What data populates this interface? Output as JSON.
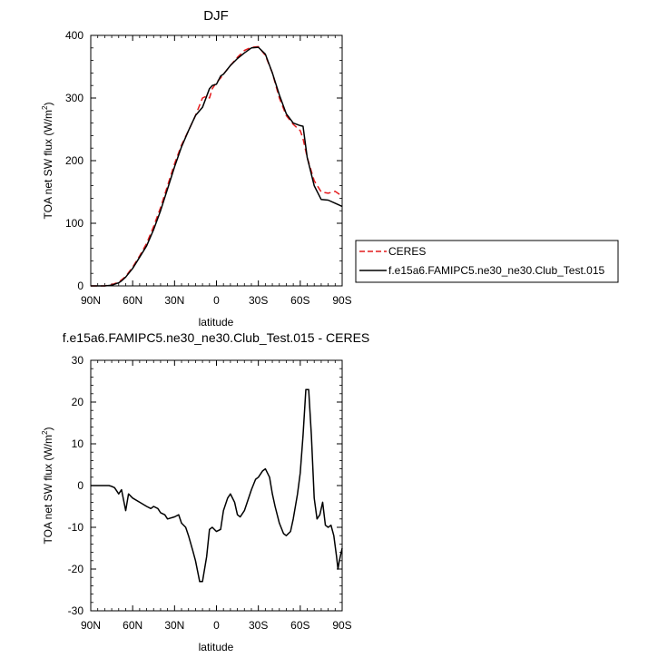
{
  "chart_data": [
    {
      "type": "line",
      "title": "DJF",
      "xlabel": "latitude",
      "ylabel_main": "TOA net SW flux (W/m",
      "ylabel_sup": "2",
      "ylabel_tail": ")",
      "xlim": [
        90,
        -90
      ],
      "ylim": [
        0,
        400
      ],
      "xticks": [
        90,
        60,
        30,
        0,
        -30,
        -60,
        -90
      ],
      "xtick_labels": [
        "90N",
        "60N",
        "30N",
        "0",
        "30S",
        "60S",
        "90S"
      ],
      "yticks": [
        0,
        100,
        200,
        300,
        400
      ],
      "ytick_labels": [
        "0",
        "100",
        "200",
        "300",
        "400"
      ],
      "legend_position": "right",
      "series": [
        {
          "name": "CERES",
          "color": "#e41a1c",
          "dash": "dashed",
          "x": [
            90,
            85,
            80,
            75,
            70,
            65,
            60,
            55,
            50,
            45,
            40,
            35,
            30,
            25,
            20,
            15,
            10,
            7,
            5,
            3,
            0,
            -3,
            -5,
            -10,
            -15,
            -20,
            -25,
            -30,
            -35,
            -40,
            -45,
            -50,
            -55,
            -60,
            -62,
            -65,
            -70,
            -75,
            -80,
            -85,
            -90
          ],
          "y": [
            0,
            0,
            0,
            2,
            6,
            15,
            30,
            48,
            68,
            95,
            125,
            160,
            195,
            225,
            248,
            272,
            300,
            303,
            300,
            315,
            325,
            332,
            338,
            352,
            365,
            376,
            381,
            382,
            368,
            340,
            300,
            272,
            258,
            248,
            235,
            205,
            168,
            150,
            148,
            151,
            143
          ]
        },
        {
          "name": "f.e15a6.FAMIPC5.ne30_ne30.Club_Test.015",
          "color": "#000000",
          "dash": "solid",
          "x": [
            90,
            85,
            80,
            75,
            70,
            68,
            65,
            60,
            55,
            50,
            45,
            40,
            35,
            30,
            25,
            20,
            15,
            10,
            5,
            3,
            0,
            -3,
            -5,
            -10,
            -15,
            -20,
            -25,
            -30,
            -35,
            -40,
            -45,
            -50,
            -55,
            -60,
            -62,
            -65,
            -70,
            -75,
            -80,
            -85,
            -90
          ],
          "y": [
            0,
            0,
            0,
            1,
            5,
            8,
            14,
            28,
            46,
            64,
            90,
            120,
            155,
            190,
            222,
            248,
            272,
            285,
            315,
            320,
            322,
            335,
            338,
            352,
            363,
            372,
            380,
            381,
            370,
            340,
            305,
            275,
            260,
            256,
            255,
            205,
            160,
            138,
            137,
            132,
            127
          ]
        }
      ]
    },
    {
      "type": "line",
      "title": "f.e15a6.FAMIPC5.ne30_ne30.Club_Test.015 - CERES",
      "xlabel": "latitude",
      "ylabel_main": "TOA net SW flux (W/m",
      "ylabel_sup": "2",
      "ylabel_tail": ")",
      "xlim": [
        90,
        -90
      ],
      "ylim": [
        -30,
        30
      ],
      "xticks": [
        90,
        60,
        30,
        0,
        -30,
        -60,
        -90
      ],
      "xtick_labels": [
        "90N",
        "60N",
        "30N",
        "0",
        "30S",
        "60S",
        "90S"
      ],
      "yticks": [
        -30,
        -20,
        -10,
        0,
        10,
        20,
        30
      ],
      "ytick_labels": [
        "-30",
        "-20",
        "-10",
        "0",
        "10",
        "20",
        "30"
      ],
      "series": [
        {
          "name": "",
          "color": "#000000",
          "dash": "solid",
          "x": [
            90,
            85,
            80,
            77,
            75,
            73,
            70,
            68,
            65,
            63,
            60,
            55,
            50,
            47,
            45,
            42,
            40,
            37,
            35,
            30,
            27,
            25,
            22,
            20,
            17,
            15,
            12,
            10,
            7,
            5,
            3,
            0,
            -3,
            -5,
            -8,
            -10,
            -13,
            -15,
            -17,
            -20,
            -22,
            -25,
            -28,
            -30,
            -33,
            -35,
            -38,
            -40,
            -42,
            -45,
            -48,
            -50,
            -53,
            -55,
            -58,
            -60,
            -62,
            -64,
            -66,
            -68,
            -70,
            -72,
            -74,
            -76,
            -78,
            -80,
            -82,
            -84,
            -86,
            -87,
            -88,
            -90
          ],
          "y": [
            0,
            0,
            0,
            0,
            -0.2,
            -0.5,
            -2,
            -1,
            -6,
            -2,
            -3,
            -4,
            -5,
            -5.5,
            -5,
            -5.5,
            -6.5,
            -7,
            -8,
            -7.5,
            -7,
            -9,
            -10,
            -12,
            -15.5,
            -18,
            -23,
            -23,
            -17,
            -10.5,
            -10,
            -11,
            -10.5,
            -6,
            -3,
            -2,
            -4,
            -7,
            -7.5,
            -6,
            -4,
            -1,
            1.5,
            2,
            3.5,
            4,
            2,
            -2,
            -5,
            -9,
            -11.5,
            -12,
            -11,
            -8,
            -2,
            3,
            12,
            23,
            23,
            12,
            -3,
            -8,
            -7,
            -4,
            -9.5,
            -10,
            -9.5,
            -12,
            -17,
            -20,
            -18,
            -15
          ]
        }
      ]
    }
  ]
}
